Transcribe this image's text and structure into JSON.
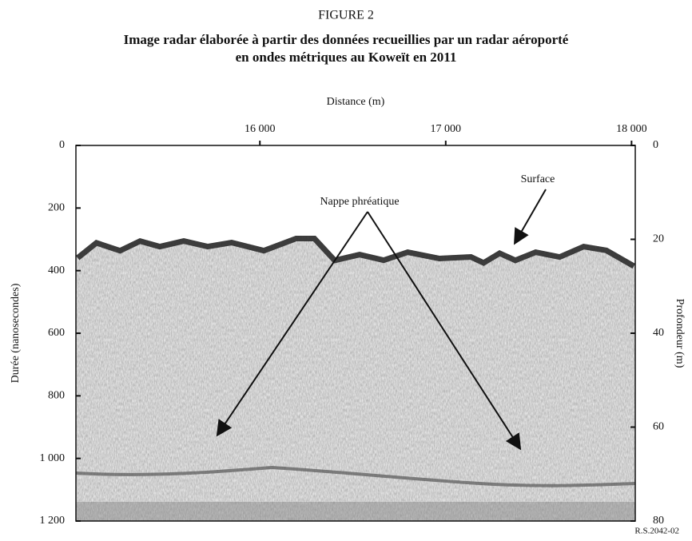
{
  "chart_data": {
    "type": "radargram",
    "title": "FIGURE 2",
    "subtitle": "Image radar élaborée à partir des données recueillies par un radar aéroporté en ondes métriques au Koweït en 2011",
    "x_label": "Distance (m)",
    "y_label": "Durée (nanosecondes)",
    "y2_label": "Profondeur (m)",
    "xlim": [
      15010,
      18020
    ],
    "xticks": [
      {
        "value": 16000,
        "label": "16 000"
      },
      {
        "value": 17000,
        "label": "17 000"
      },
      {
        "value": 18000,
        "label": "18 000"
      }
    ],
    "ylim": [
      0,
      1200
    ],
    "yticks": [
      0,
      200,
      400,
      600,
      800,
      {
        "value": 1000,
        "label": "1 000"
      },
      {
        "value": 1200,
        "label": "1 200"
      }
    ],
    "y2lim": [
      0,
      80
    ],
    "y2ticks": [
      0,
      20,
      40,
      60,
      80
    ],
    "annotations": [
      "Nappe phréatique",
      "Surface"
    ],
    "reference": "R.S.2042-02"
  }
}
